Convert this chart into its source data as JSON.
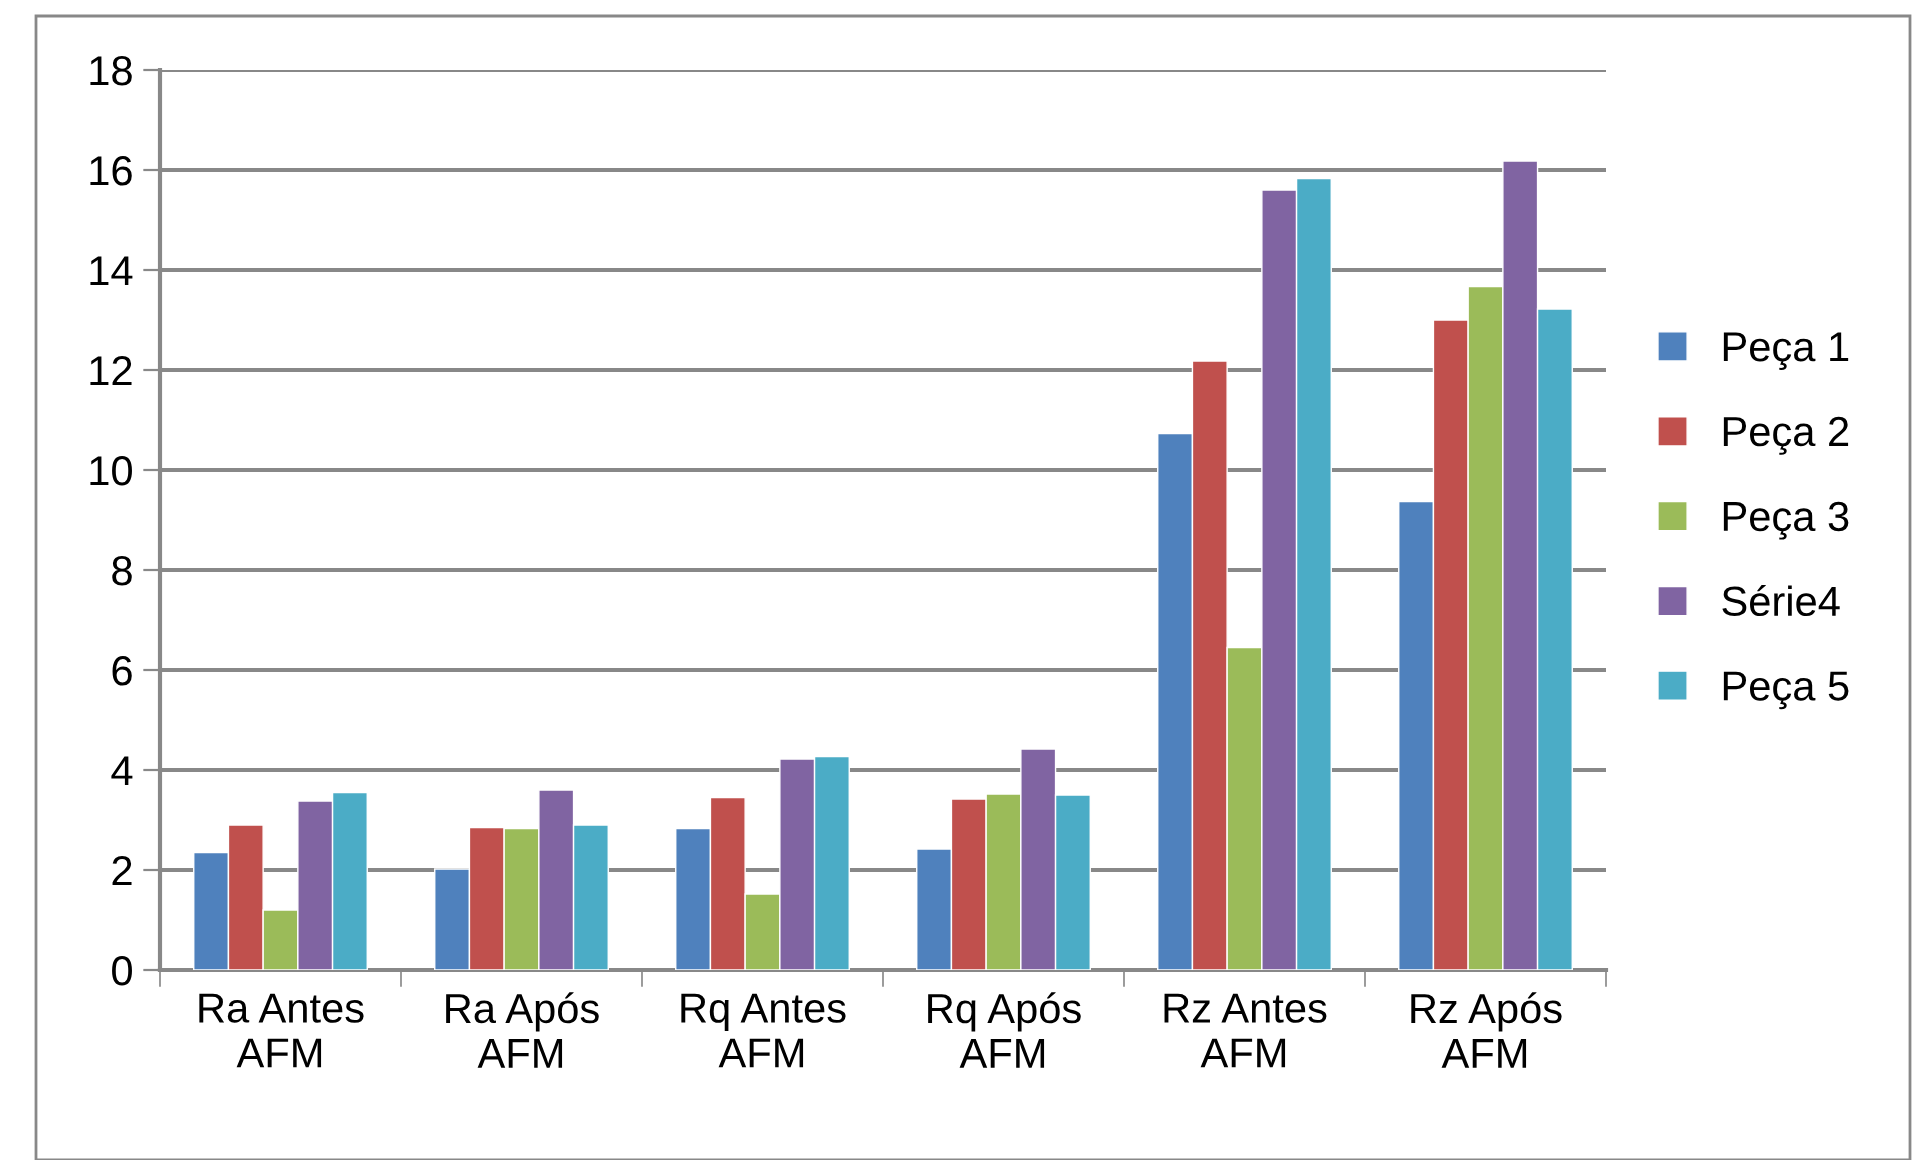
{
  "chart_data": {
    "type": "bar",
    "categories": [
      "Ra Antes\nAFM",
      "Ra Após\nAFM",
      "Rq Antes\nAFM",
      "Rq Após\nAFM",
      "Rz Antes\nAFM",
      "Rz Após\nAFM"
    ],
    "series": [
      {
        "name": "Peça 1",
        "color": "#4f81bd",
        "values": [
          2.35,
          2.02,
          2.83,
          2.42,
          10.73,
          9.37
        ]
      },
      {
        "name": "Peça 2",
        "color": "#c0504d",
        "values": [
          2.9,
          2.85,
          3.45,
          3.42,
          12.18,
          13.0
        ]
      },
      {
        "name": "Peça 3",
        "color": "#9bbb59",
        "values": [
          1.2,
          2.83,
          1.52,
          3.52,
          6.45,
          13.67
        ]
      },
      {
        "name": "Série4",
        "color": "#8064a2",
        "values": [
          3.38,
          3.6,
          4.22,
          4.42,
          15.6,
          16.18
        ]
      },
      {
        "name": "Peça 5",
        "color": "#4bacc6",
        "values": [
          3.55,
          2.9,
          4.27,
          3.5,
          15.83,
          13.22
        ]
      }
    ],
    "ylim": [
      0,
      18
    ],
    "yticks": [
      0,
      2,
      4,
      6,
      8,
      10,
      12,
      14,
      16,
      18
    ],
    "grid": "y",
    "legend": "right"
  }
}
